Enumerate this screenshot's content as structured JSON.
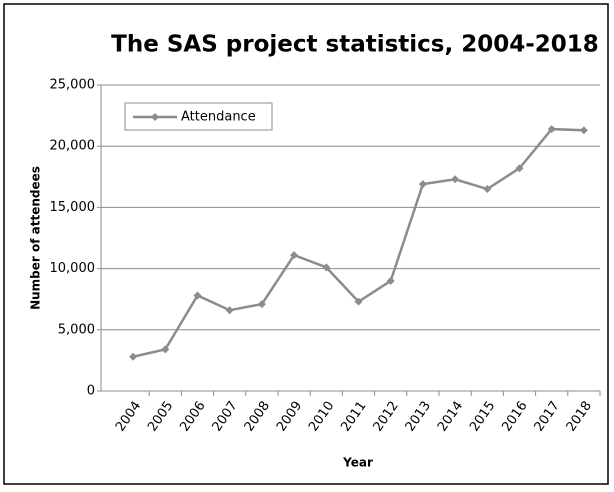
{
  "chart_data": {
    "type": "line",
    "title": "The SAS project statistics, 2004-2018",
    "x_label": "Year",
    "y_label": "Number of attendees",
    "categories": [
      "2004",
      "2005",
      "2006",
      "2007",
      "2008",
      "2009",
      "2010",
      "2011",
      "2012",
      "2013",
      "2014",
      "2015",
      "2016",
      "2017",
      "2018"
    ],
    "series": [
      {
        "name": "Attendance",
        "color": "#8c8c8c",
        "values": [
          2800,
          3400,
          7800,
          6600,
          7100,
          11100,
          10100,
          7300,
          9000,
          16900,
          17300,
          16500,
          18200,
          21400,
          21300
        ]
      }
    ],
    "ylim": [
      0,
      25000
    ],
    "yticks": [
      0,
      {
        "value": 5000,
        "label": "5,000"
      },
      {
        "value": 10000,
        "label": "10,000"
      },
      {
        "value": 15000,
        "label": "15,000"
      },
      {
        "value": 20000,
        "label": "20,000"
      },
      {
        "value": 25000,
        "label": "25,000"
      }
    ],
    "grid": true,
    "legend": "upper left"
  }
}
